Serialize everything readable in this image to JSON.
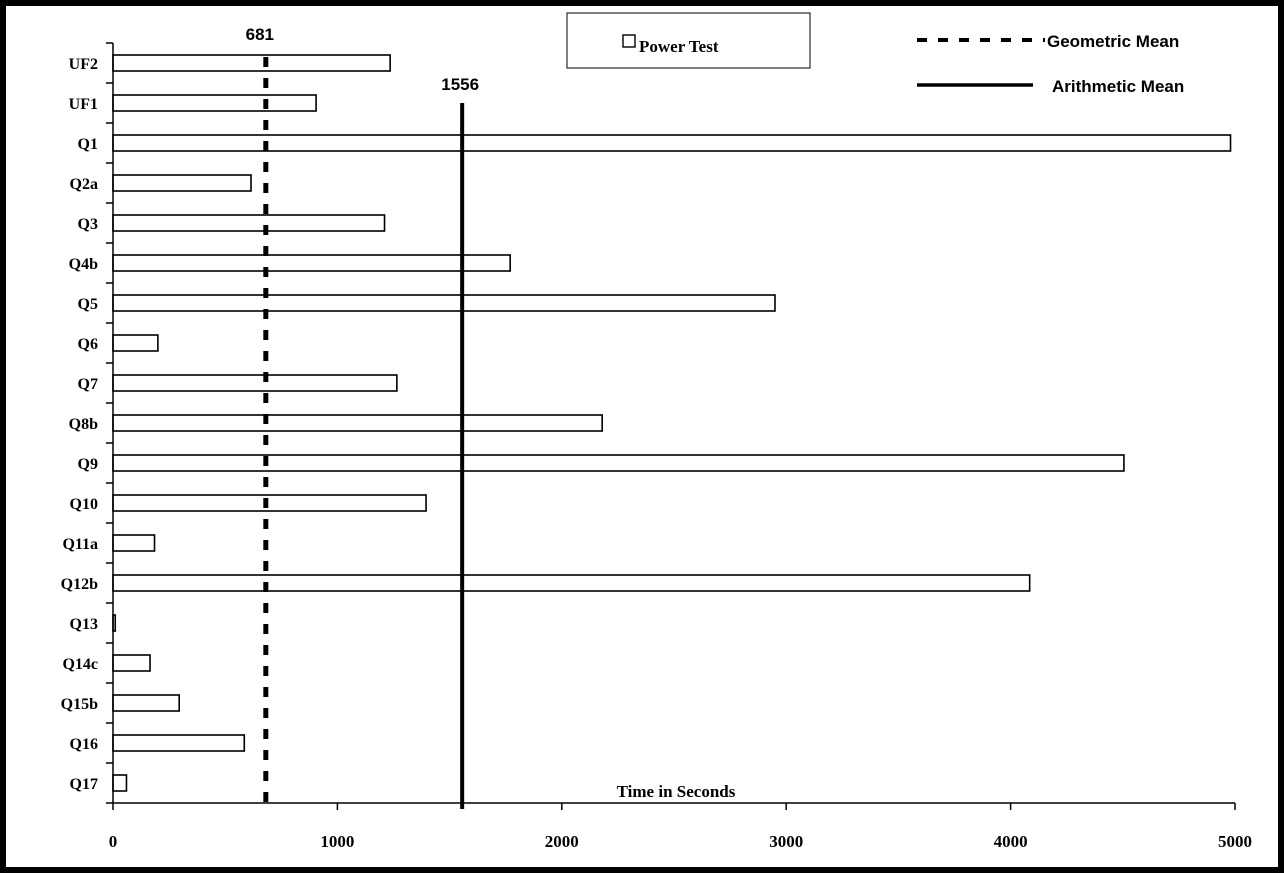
{
  "chart_data": {
    "type": "bar",
    "orientation": "horizontal",
    "categories": [
      "UF2",
      "UF1",
      "Q1",
      "Q2a",
      "Q3",
      "Q4b",
      "Q5",
      "Q6",
      "Q7",
      "Q8b",
      "Q9",
      "Q10",
      "Q11a",
      "Q12b",
      "Q13",
      "Q14c",
      "Q15b",
      "Q16",
      "Q17"
    ],
    "series": [
      {
        "name": "Power Test",
        "values": [
          1235,
          905,
          4980,
          615,
          1210,
          1770,
          2950,
          200,
          1265,
          2180,
          4505,
          1395,
          185,
          4085,
          10,
          165,
          295,
          585,
          60
        ],
        "color": "#ffffff"
      }
    ],
    "reference_lines": [
      {
        "name": "Geometric Mean",
        "value": 681,
        "label": "681",
        "style": "dashed"
      },
      {
        "name": "Arithmetic Mean",
        "value": 1556,
        "label": "1556",
        "style": "solid"
      }
    ],
    "xlabel": "Time in Seconds",
    "xlim": [
      0,
      5000
    ],
    "x_ticks": [
      "0",
      "1000",
      "2000",
      "3000",
      "4000",
      "5000"
    ],
    "grid": false,
    "legend": {
      "position": "top",
      "entries": [
        "Power Test",
        "Geometric Mean",
        "Arithmetic Mean"
      ]
    }
  }
}
